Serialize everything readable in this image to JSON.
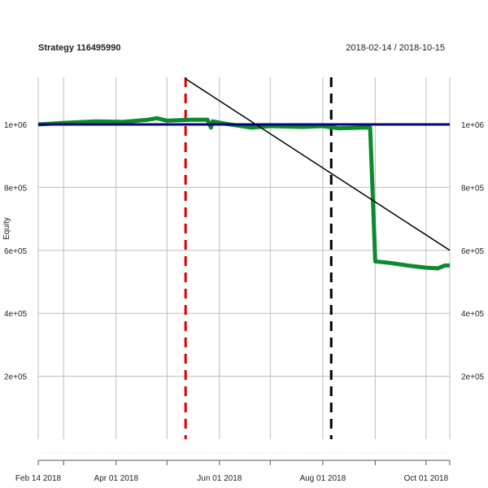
{
  "chart_data": {
    "type": "line",
    "title": "Strategy 116495990",
    "date_range": "2018-02-14 / 2018-10-15",
    "ylabel": "Equity",
    "xlim": [
      "2018-02-14",
      "2018-10-15"
    ],
    "ylim": [
      0,
      1150000
    ],
    "yticks": [
      {
        "value": 200000,
        "label": "2e+05"
      },
      {
        "value": 400000,
        "label": "4e+05"
      },
      {
        "value": 600000,
        "label": "6e+05"
      },
      {
        "value": 800000,
        "label": "8e+05"
      },
      {
        "value": 1000000,
        "label": "1e+06"
      }
    ],
    "xticks": [
      {
        "date": "2018-02-14",
        "label": "Feb 14 2018"
      },
      {
        "date": "2018-04-01",
        "label": "Apr 01 2018"
      },
      {
        "date": "2018-06-01",
        "label": "Jun 01 2018"
      },
      {
        "date": "2018-08-01",
        "label": "Aug 01 2018"
      },
      {
        "date": "2018-10-01",
        "label": "Oct 01 2018"
      }
    ],
    "vgrid_dates": [
      "2018-03-01",
      "2018-04-01",
      "2018-05-01",
      "2018-06-01",
      "2018-07-01",
      "2018-08-01",
      "2018-09-01",
      "2018-10-01",
      "2018-10-15"
    ],
    "grid": true,
    "series": [
      {
        "color": "#0b8a2e",
        "style": "solid",
        "points": [
          [
            "2018-02-14",
            1000000
          ],
          [
            "2018-03-01",
            1005000
          ],
          [
            "2018-03-20",
            1010000
          ],
          [
            "2018-04-05",
            1008000
          ],
          [
            "2018-04-20",
            1015000
          ],
          [
            "2018-04-25",
            1020000
          ],
          [
            "2018-05-01",
            1012000
          ],
          [
            "2018-05-15",
            1015000
          ],
          [
            "2018-05-25",
            1015000
          ],
          [
            "2018-05-27",
            990000
          ],
          [
            "2018-05-28",
            1010000
          ],
          [
            "2018-06-05",
            1002000
          ],
          [
            "2018-06-20",
            990000
          ],
          [
            "2018-07-01",
            995000
          ],
          [
            "2018-07-20",
            992000
          ],
          [
            "2018-08-01",
            995000
          ],
          [
            "2018-08-10",
            988000
          ],
          [
            "2018-08-25",
            990000
          ],
          [
            "2018-08-29",
            990000
          ],
          [
            "2018-09-01",
            565000
          ],
          [
            "2018-09-10",
            560000
          ],
          [
            "2018-09-20",
            552000
          ],
          [
            "2018-10-01",
            545000
          ],
          [
            "2018-10-08",
            543000
          ],
          [
            "2018-10-12",
            552000
          ],
          [
            "2018-10-15",
            552000
          ]
        ]
      },
      {
        "color": "#000080",
        "style": "solid",
        "points": [
          [
            "2018-02-14",
            1000000
          ],
          [
            "2018-10-15",
            1000000
          ]
        ]
      },
      {
        "color": "#000000",
        "style": "solid",
        "points": [
          [
            "2018-05-12",
            1145000
          ],
          [
            "2018-10-15",
            600000
          ]
        ]
      }
    ],
    "vlines": [
      {
        "date": "2018-05-12",
        "color": "#dd0000",
        "style": "dashed"
      },
      {
        "date": "2018-08-06",
        "color": "#000000",
        "style": "dashed"
      }
    ]
  }
}
